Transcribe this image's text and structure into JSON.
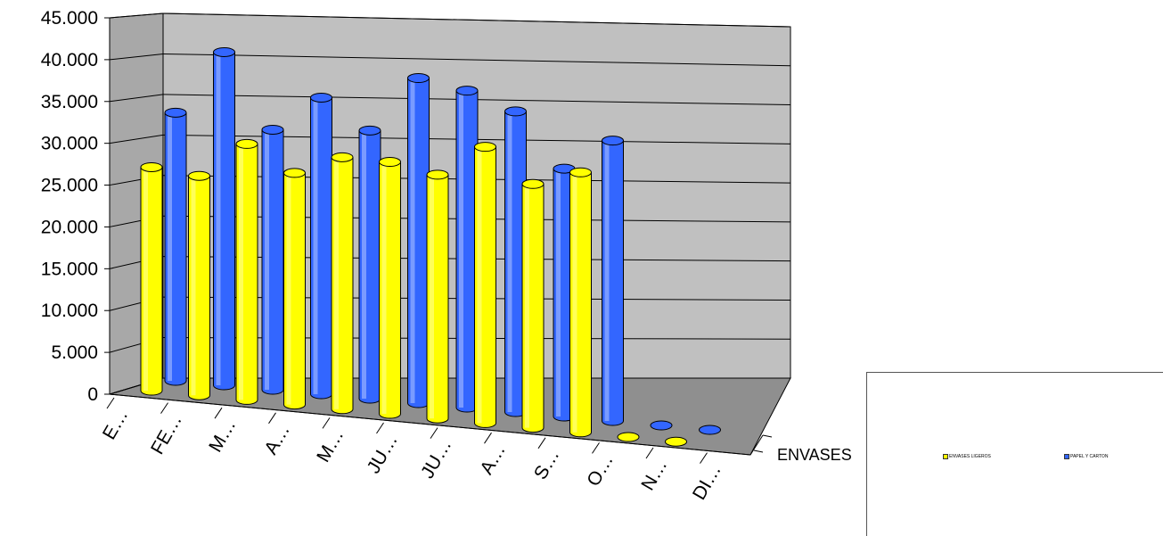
{
  "chart_data": {
    "type": "bar",
    "style": "3d-cylinder",
    "categories": [
      "E…",
      "FE…",
      "M…",
      "A…",
      "M…",
      "JU…",
      "JU…",
      "A…",
      "S…",
      "O…",
      "N…",
      "DI…"
    ],
    "series": [
      {
        "name": "ENVASES LIGEROS",
        "color": "#ffff00",
        "values": [
          27500,
          27000,
          31500,
          28500,
          31000,
          31000,
          30000,
          34000,
          30000,
          32000,
          0,
          0
        ]
      },
      {
        "name": "PAPEL Y CARTON",
        "color": "#3366ff",
        "values": [
          33000,
          41000,
          32000,
          36500,
          33000,
          40000,
          39000,
          37000,
          30500,
          34500,
          0,
          0
        ]
      }
    ],
    "series_axis_label": "ENVASES",
    "y_ticks": [
      "0",
      "5.000",
      "10.000",
      "15.000",
      "20.000",
      "25.000",
      "30.000",
      "35.000",
      "40.000",
      "45.000"
    ],
    "ylim": [
      0,
      45000
    ],
    "grid": true,
    "legend": "bottom-right"
  },
  "colors": {
    "wall": "#c0c0c0",
    "floor": "#909090",
    "yellow": "#ffff00",
    "blue": "#3366ff"
  }
}
